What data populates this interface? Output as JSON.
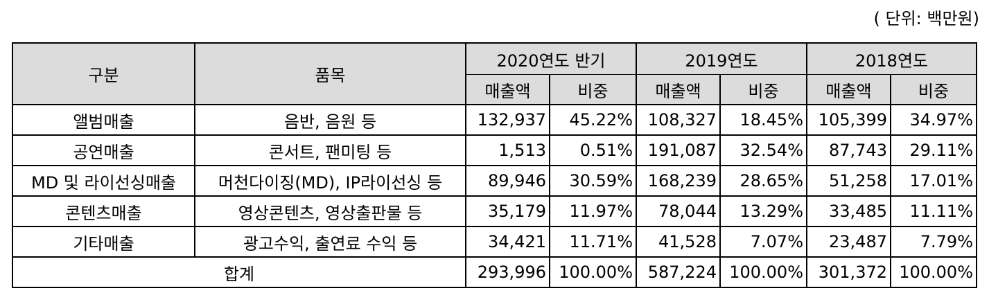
{
  "unit_note": "( 단위: 백만원)",
  "header": {
    "category": "구분",
    "item": "품목",
    "periods": [
      "2020연도 반기",
      "2019연도",
      "2018연도"
    ],
    "sales": "매출액",
    "ratio": "비중"
  },
  "rows": [
    {
      "category": "앨범매출",
      "item": "음반, 음원 등",
      "values": [
        "132,937",
        "45.22%",
        "108,327",
        "18.45%",
        "105,399",
        "34.97%"
      ]
    },
    {
      "category": "공연매출",
      "item": "콘서트, 팬미팅 등",
      "values": [
        "1,513",
        "0.51%",
        "191,087",
        "32.54%",
        "87,743",
        "29.11%"
      ]
    },
    {
      "category": "MD 및 라이선싱매출",
      "item": "머천다이징(MD), IP라이선싱 등",
      "values": [
        "89,946",
        "30.59%",
        "168,239",
        "28.65%",
        "51,258",
        "17.01%"
      ]
    },
    {
      "category": "콘텐츠매출",
      "item": "영상콘텐츠, 영상출판물 등",
      "values": [
        "35,179",
        "11.97%",
        "78,044",
        "13.29%",
        "33,485",
        "11.11%"
      ]
    },
    {
      "category": "기타매출",
      "item": "광고수익, 출연료 수익 등",
      "values": [
        "34,421",
        "11.71%",
        "41,528",
        "7.07%",
        "23,487",
        "7.79%"
      ]
    }
  ],
  "total": {
    "label": "합계",
    "values": [
      "293,996",
      "100.00%",
      "587,224",
      "100.00%",
      "301,372",
      "100.00%"
    ]
  }
}
